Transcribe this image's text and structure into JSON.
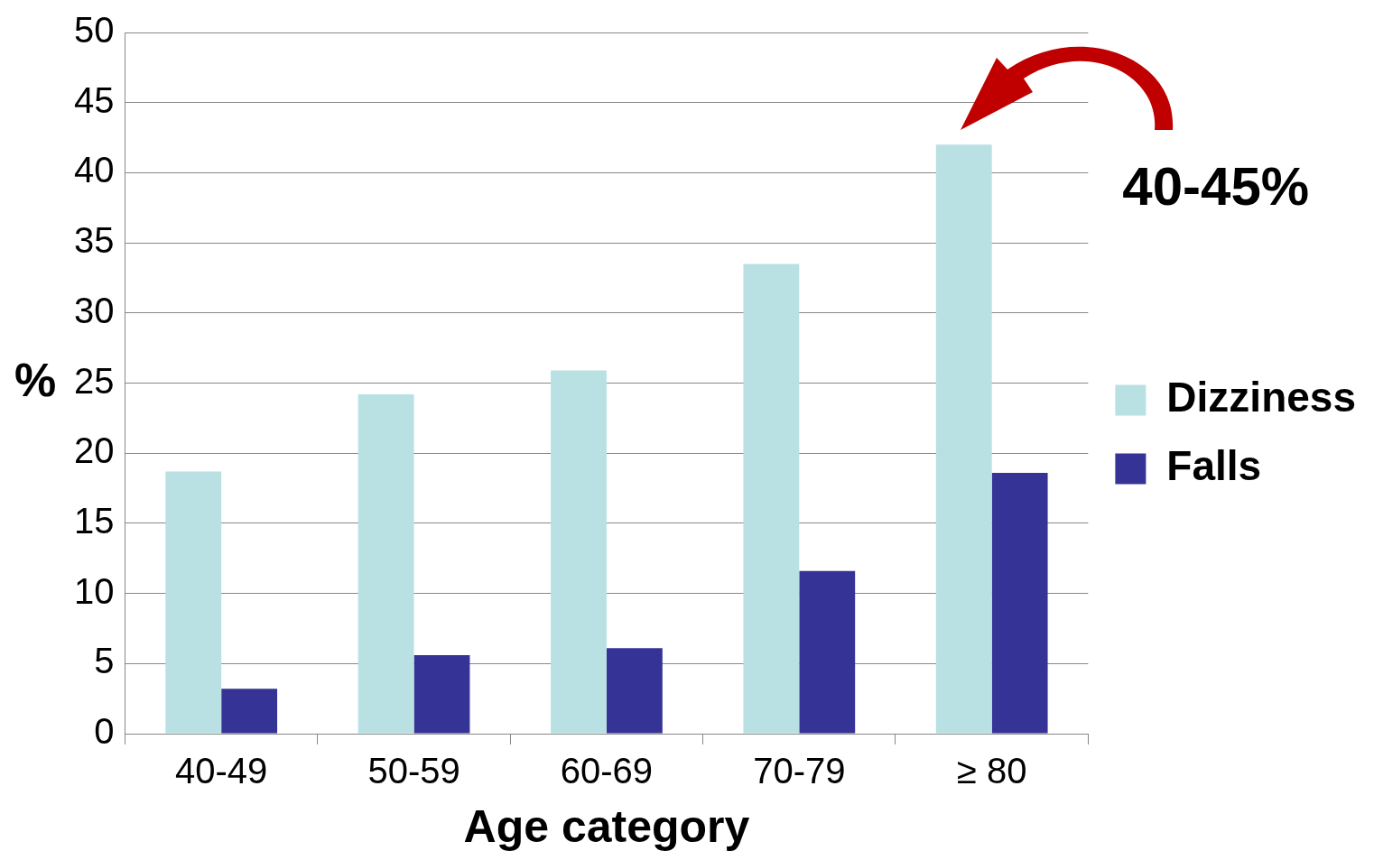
{
  "chart_data": {
    "type": "bar",
    "xlabel": "Age category",
    "ylabel": "%",
    "categories": [
      "40-49",
      "50-59",
      "60-69",
      "70-79",
      "≥ 80"
    ],
    "series": [
      {
        "name": "Dizziness",
        "color": "#b9e0e3",
        "values": [
          18.7,
          24.2,
          25.9,
          33.5,
          42.0
        ]
      },
      {
        "name": "Falls",
        "color": "#353396",
        "values": [
          3.2,
          5.6,
          6.1,
          11.6,
          18.6
        ]
      }
    ],
    "ylim": [
      0,
      50
    ],
    "yticks": [
      0,
      5,
      10,
      15,
      20,
      25,
      30,
      35,
      40,
      45,
      50
    ],
    "grid": "y",
    "legend": "right",
    "annotations": [
      {
        "text": "40-45%",
        "x": "≥ 80",
        "y": 42
      }
    ]
  }
}
